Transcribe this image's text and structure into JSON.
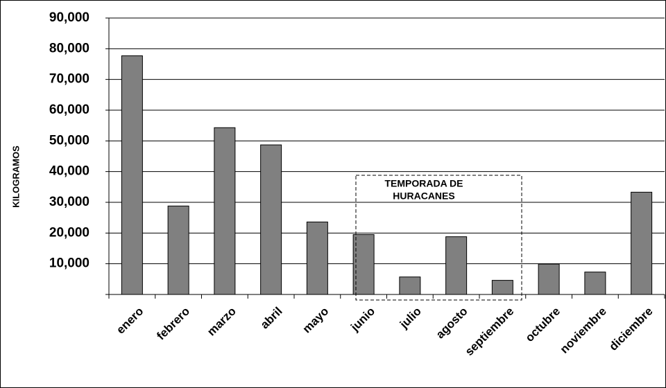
{
  "chart_data": {
    "type": "bar",
    "y_label": "KILOGRAMOS",
    "annotation_lines": [
      "TEMPORADA DE",
      "HURACANES"
    ],
    "categories": [
      "enero",
      "febrero",
      "marzo",
      "abril",
      "mayo",
      "junio",
      "julio",
      "agosto",
      "septiembre",
      "octubre",
      "noviembre",
      "diciembre"
    ],
    "values": [
      77700,
      28800,
      54300,
      48700,
      23600,
      19500,
      5700,
      18800,
      4600,
      9900,
      7300,
      33300
    ],
    "color": "#808080",
    "ylim": [
      0,
      90000
    ],
    "yticks": [
      {
        "value": 10000,
        "label": "10,000"
      },
      {
        "value": 20000,
        "label": "20,000"
      },
      {
        "value": 30000,
        "label": "30,000"
      },
      {
        "value": 40000,
        "label": "40,000"
      },
      {
        "value": 50000,
        "label": "50,000"
      },
      {
        "value": 60000,
        "label": "60,000"
      },
      {
        "value": 70000,
        "label": "70,000"
      },
      {
        "value": 80000,
        "label": "80,000"
      },
      {
        "value": 90000,
        "label": "90,000"
      }
    ],
    "grid": true
  }
}
